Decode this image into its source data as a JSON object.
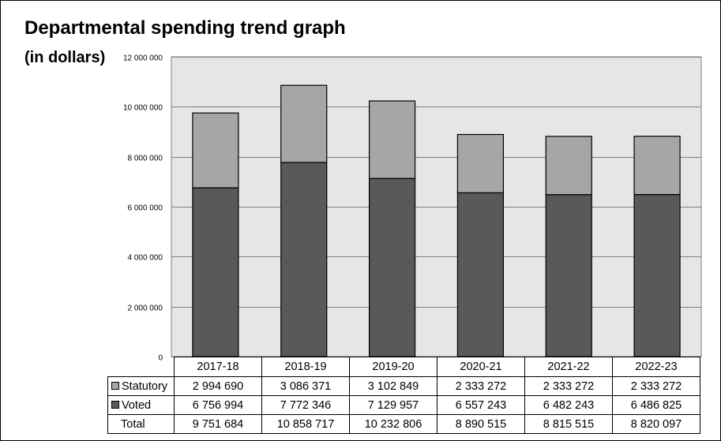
{
  "chart_data": {
    "type": "bar",
    "stacked": true,
    "title": "Departmental spending trend graph",
    "subtitle": "(in dollars)",
    "categories": [
      "2017-18",
      "2018-19",
      "2019-20",
      "2020-21",
      "2021-22",
      "2022-23"
    ],
    "series": [
      {
        "name": "Statutory",
        "values": [
          2994690,
          3086371,
          3102849,
          2333272,
          2333272,
          2333272
        ],
        "labels": [
          "2 994 690",
          "3 086 371",
          "3 102 849",
          "2 333 272",
          "2 333 272",
          "2 333 272"
        ],
        "color": "#a6a6a6"
      },
      {
        "name": "Voted",
        "values": [
          6756994,
          7772346,
          7129957,
          6557243,
          6482243,
          6486825
        ],
        "labels": [
          "6 756 994",
          "7 772 346",
          "7 129 957",
          "6 557 243",
          "6 482 243",
          "6 486 825"
        ],
        "color": "#595959"
      }
    ],
    "totals": {
      "name": "Total",
      "labels": [
        "9 751 684",
        "10 858 717",
        "10 232 806",
        "8 890 515",
        "8 815 515",
        "8 820 097"
      ]
    },
    "ylim": [
      0,
      12000000
    ],
    "yticks": [
      0,
      2000000,
      4000000,
      6000000,
      8000000,
      10000000,
      12000000
    ],
    "ytick_labels": [
      "0",
      "2 000 000",
      "4 000 000",
      "6 000 000",
      "8 000 000",
      "10 000 000",
      "12 000 000"
    ],
    "grid": true,
    "legend": "data-table",
    "plot_background": "#e6e6e6"
  }
}
